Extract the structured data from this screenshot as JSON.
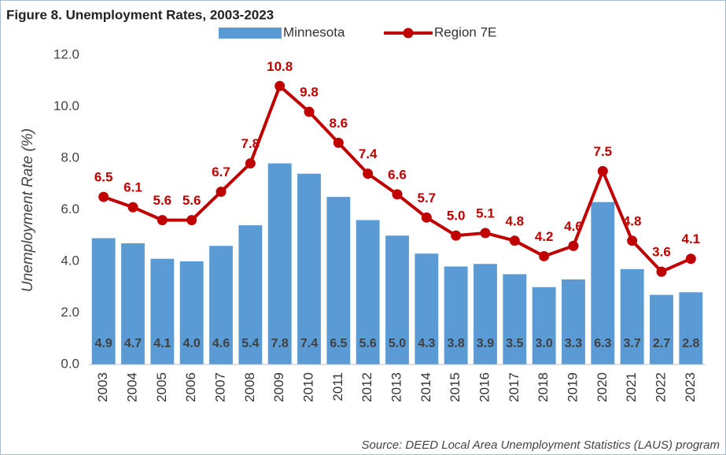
{
  "chart_data": {
    "type": "bar",
    "title": "Figure 8. Unemployment Rates, 2003-2023",
    "y_label": "Unemployment Rate (%)",
    "source": "Source: DEED Local Area Unemployment Statistics (LAUS) program",
    "categories": [
      "2003",
      "2004",
      "2005",
      "2006",
      "2007",
      "2008",
      "2009",
      "2010",
      "2011",
      "2012",
      "2013",
      "2014",
      "2015",
      "2016",
      "2017",
      "2018",
      "2019",
      "2020",
      "2021",
      "2022",
      "2023"
    ],
    "series": [
      {
        "name": "Minnesota",
        "type": "bar",
        "color": "#5b9bd5",
        "values": [
          4.9,
          4.7,
          4.1,
          4.0,
          4.6,
          5.4,
          7.8,
          7.4,
          6.5,
          5.6,
          5.0,
          4.3,
          3.8,
          3.9,
          3.5,
          3.0,
          3.3,
          6.3,
          3.7,
          2.7,
          2.8
        ],
        "value_labels": [
          "4.9",
          "4.7",
          "4.1",
          "4.0",
          "4.6",
          "5.4",
          "7.8",
          "7.4",
          "6.5",
          "5.6",
          "5.0",
          "4.3",
          "3.8",
          "3.9",
          "3.5",
          "3.0",
          "3.3",
          "6.3",
          "3.7",
          "2.7",
          "2.8"
        ]
      },
      {
        "name": "Region 7E",
        "type": "line",
        "color": "#c00000",
        "values": [
          6.5,
          6.1,
          5.6,
          5.6,
          6.7,
          7.8,
          10.8,
          9.8,
          8.6,
          7.4,
          6.6,
          5.7,
          5.0,
          5.1,
          4.8,
          4.2,
          4.6,
          7.5,
          4.8,
          3.6,
          4.1
        ],
        "value_labels": [
          "6.5",
          "6.1",
          "5.6",
          "5.6",
          "6.7",
          "7.8",
          "10.8",
          "9.8",
          "8.6",
          "7.4",
          "6.6",
          "5.7",
          "5.0",
          "5.1",
          "4.8",
          "4.2",
          "4.6",
          "7.5",
          "4.8",
          "3.6",
          "4.1"
        ]
      }
    ],
    "ylim": [
      0,
      12
    ],
    "yticks": [
      {
        "value": 0,
        "label": "0.0"
      },
      {
        "value": 2,
        "label": "2.0"
      },
      {
        "value": 4,
        "label": "4.0"
      },
      {
        "value": 6,
        "label": "6.0"
      },
      {
        "value": 8,
        "label": "8.0"
      },
      {
        "value": 10,
        "label": "10.0"
      },
      {
        "value": 12,
        "label": "12.0"
      }
    ],
    "grid": false,
    "legend": "top"
  }
}
